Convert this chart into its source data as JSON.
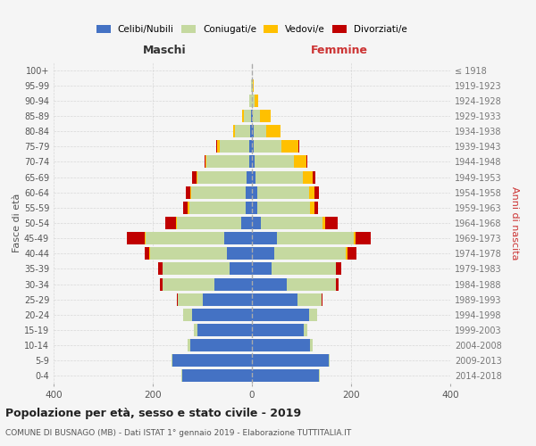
{
  "age_groups": [
    "0-4",
    "5-9",
    "10-14",
    "15-19",
    "20-24",
    "25-29",
    "30-34",
    "35-39",
    "40-44",
    "45-49",
    "50-54",
    "55-59",
    "60-64",
    "65-69",
    "70-74",
    "75-79",
    "80-84",
    "85-89",
    "90-94",
    "95-99",
    "100+"
  ],
  "birth_years": [
    "2014-2018",
    "2009-2013",
    "2004-2008",
    "1999-2003",
    "1994-1998",
    "1989-1993",
    "1984-1988",
    "1979-1983",
    "1974-1978",
    "1969-1973",
    "1964-1968",
    "1959-1963",
    "1954-1958",
    "1949-1953",
    "1944-1948",
    "1939-1943",
    "1934-1938",
    "1929-1933",
    "1924-1928",
    "1919-1923",
    "≤ 1918"
  ],
  "maschi": {
    "celibi": [
      140,
      160,
      125,
      110,
      120,
      100,
      75,
      45,
      50,
      55,
      22,
      12,
      12,
      10,
      6,
      5,
      4,
      2,
      0,
      0,
      0
    ],
    "coniugati": [
      2,
      2,
      5,
      8,
      18,
      50,
      105,
      135,
      155,
      160,
      130,
      115,
      110,
      100,
      85,
      60,
      30,
      15,
      5,
      2,
      0
    ],
    "vedovi": [
      0,
      0,
      0,
      0,
      0,
      0,
      0,
      0,
      2,
      2,
      2,
      2,
      2,
      2,
      3,
      5,
      3,
      2,
      0,
      0,
      0
    ],
    "divorziati": [
      0,
      0,
      0,
      0,
      0,
      2,
      5,
      10,
      10,
      35,
      20,
      10,
      10,
      8,
      2,
      2,
      0,
      0,
      0,
      0,
      0
    ]
  },
  "femmine": {
    "nubili": [
      135,
      155,
      118,
      105,
      115,
      92,
      70,
      40,
      45,
      50,
      18,
      10,
      10,
      8,
      5,
      4,
      3,
      2,
      0,
      0,
      0
    ],
    "coniugate": [
      2,
      2,
      4,
      7,
      16,
      48,
      100,
      130,
      145,
      155,
      125,
      108,
      105,
      95,
      80,
      55,
      25,
      15,
      5,
      2,
      0
    ],
    "vedove": [
      0,
      0,
      0,
      0,
      0,
      0,
      0,
      0,
      2,
      4,
      5,
      8,
      12,
      20,
      25,
      35,
      30,
      20,
      8,
      2,
      0
    ],
    "divorziate": [
      0,
      0,
      0,
      0,
      0,
      2,
      5,
      10,
      18,
      30,
      25,
      8,
      8,
      5,
      2,
      2,
      0,
      0,
      0,
      0,
      0
    ]
  },
  "colors": {
    "celibi": "#4472c4",
    "coniugati": "#c5d9a0",
    "vedovi": "#ffc000",
    "divorziati": "#c00000"
  },
  "xlim": 400,
  "title": "Popolazione per età, sesso e stato civile - 2019",
  "subtitle": "COMUNE DI BUSNAGO (MB) - Dati ISTAT 1° gennaio 2019 - Elaborazione TUTTITALIA.IT",
  "ylabel_left": "Fasce di età",
  "ylabel_right": "Anni di nascita",
  "xlabel_left": "Maschi",
  "xlabel_right": "Femmine",
  "bg_color": "#f5f5f5",
  "grid_color": "#cccccc"
}
